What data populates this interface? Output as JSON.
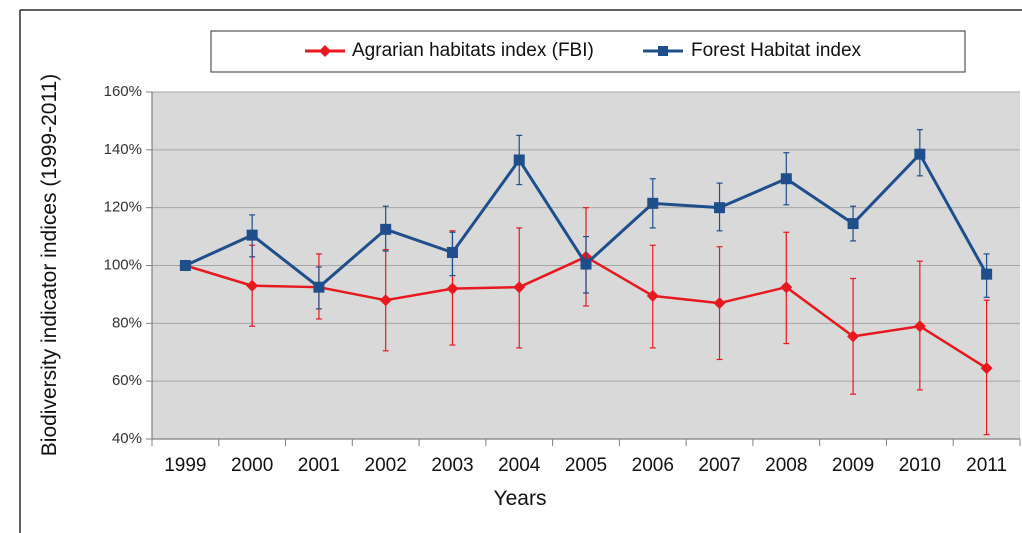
{
  "chart_data": {
    "type": "line",
    "xlabel": "Years",
    "ylabel": "Biodiversity indicator indices (1999-2011)",
    "categories": [
      "1999",
      "2000",
      "2001",
      "2002",
      "2003",
      "2004",
      "2005",
      "2006",
      "2007",
      "2008",
      "2009",
      "2010",
      "2011"
    ],
    "ylim": [
      40,
      160
    ],
    "yticks": [
      40,
      60,
      80,
      100,
      120,
      140,
      160
    ],
    "ytick_labels": [
      "40%",
      "60%",
      "80%",
      "100%",
      "120%",
      "140%",
      "160%"
    ],
    "grid": true,
    "legend_position": "top",
    "series": [
      {
        "name": "Agrarian habitats index (FBI)",
        "color": "#e8191e",
        "marker": "diamond",
        "values": [
          100,
          93,
          92.5,
          88,
          92,
          92.5,
          103,
          89.5,
          87,
          92.5,
          75.5,
          79,
          64.5
        ],
        "error_low": [
          100,
          79,
          81.5,
          70.5,
          72.5,
          71.5,
          86,
          71.5,
          67.5,
          73,
          55.5,
          57,
          41.5
        ],
        "error_high": [
          100,
          107,
          104,
          105.5,
          112,
          113,
          120,
          107,
          106.5,
          111.5,
          95.5,
          101.5,
          88
        ]
      },
      {
        "name": "Forest Habitat index",
        "color": "#1f4e8c",
        "marker": "square",
        "values": [
          100,
          110.5,
          92.5,
          112.5,
          104.5,
          136.5,
          100.5,
          121.5,
          120,
          130,
          114.5,
          138.5,
          97
        ],
        "error_low": [
          100,
          103,
          85,
          105,
          96.5,
          128,
          90.5,
          113,
          112,
          121,
          108.5,
          131,
          89
        ],
        "error_high": [
          100,
          117.5,
          99.5,
          120.5,
          111.5,
          145,
          110,
          130,
          128.5,
          139,
          120.5,
          147,
          104
        ]
      }
    ]
  }
}
